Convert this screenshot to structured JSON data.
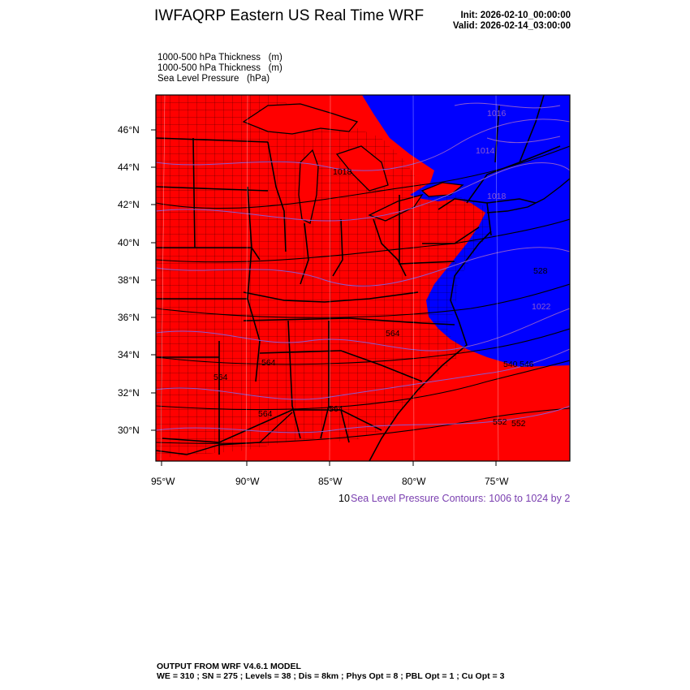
{
  "header": {
    "title": "IWFAQRP Eastern US Real Time WRF",
    "init": "Init: 2026-02-10_00:00:00",
    "valid": "Valid: 2026-02-14_03:00:00"
  },
  "fields": [
    "1000-500 hPa Thickness   (m)",
    "1000-500 hPa Thickness   (m)",
    "Sea Level Pressure   (hPa)"
  ],
  "axes": {
    "lat_labels": [
      "46°N",
      "44°N",
      "42°N",
      "40°N",
      "38°N",
      "36°N",
      "34°N",
      "32°N",
      "30°N"
    ],
    "lon_labels": [
      "95°W",
      "90°W",
      "85°W",
      "80°W",
      "75°W"
    ]
  },
  "contour_labels": {
    "pressure": [
      "1016",
      "1014",
      "1018",
      "1018",
      "1022"
    ],
    "thickness": [
      "528",
      "564",
      "564",
      "564",
      "540",
      "546",
      "552",
      "552",
      "564",
      "564"
    ]
  },
  "slp_caption_prefix": "10",
  "slp_caption": "Sea Level Pressure Contours: 1006 to 1024 by 2",
  "footer": {
    "line1": "OUTPUT FROM WRF V4.6.1 MODEL",
    "line2": "WE = 310 ; SN = 275 ; Levels = 38 ; Dis = 8km ; Phys Opt = 8 ; PBL Opt = 1 ; Cu Opt = 3"
  },
  "colors": {
    "warm_fill": "#ff0000",
    "cold_fill": "#0000ff",
    "pressure_contour": "#8a5ad0",
    "boundary": "#000000"
  }
}
